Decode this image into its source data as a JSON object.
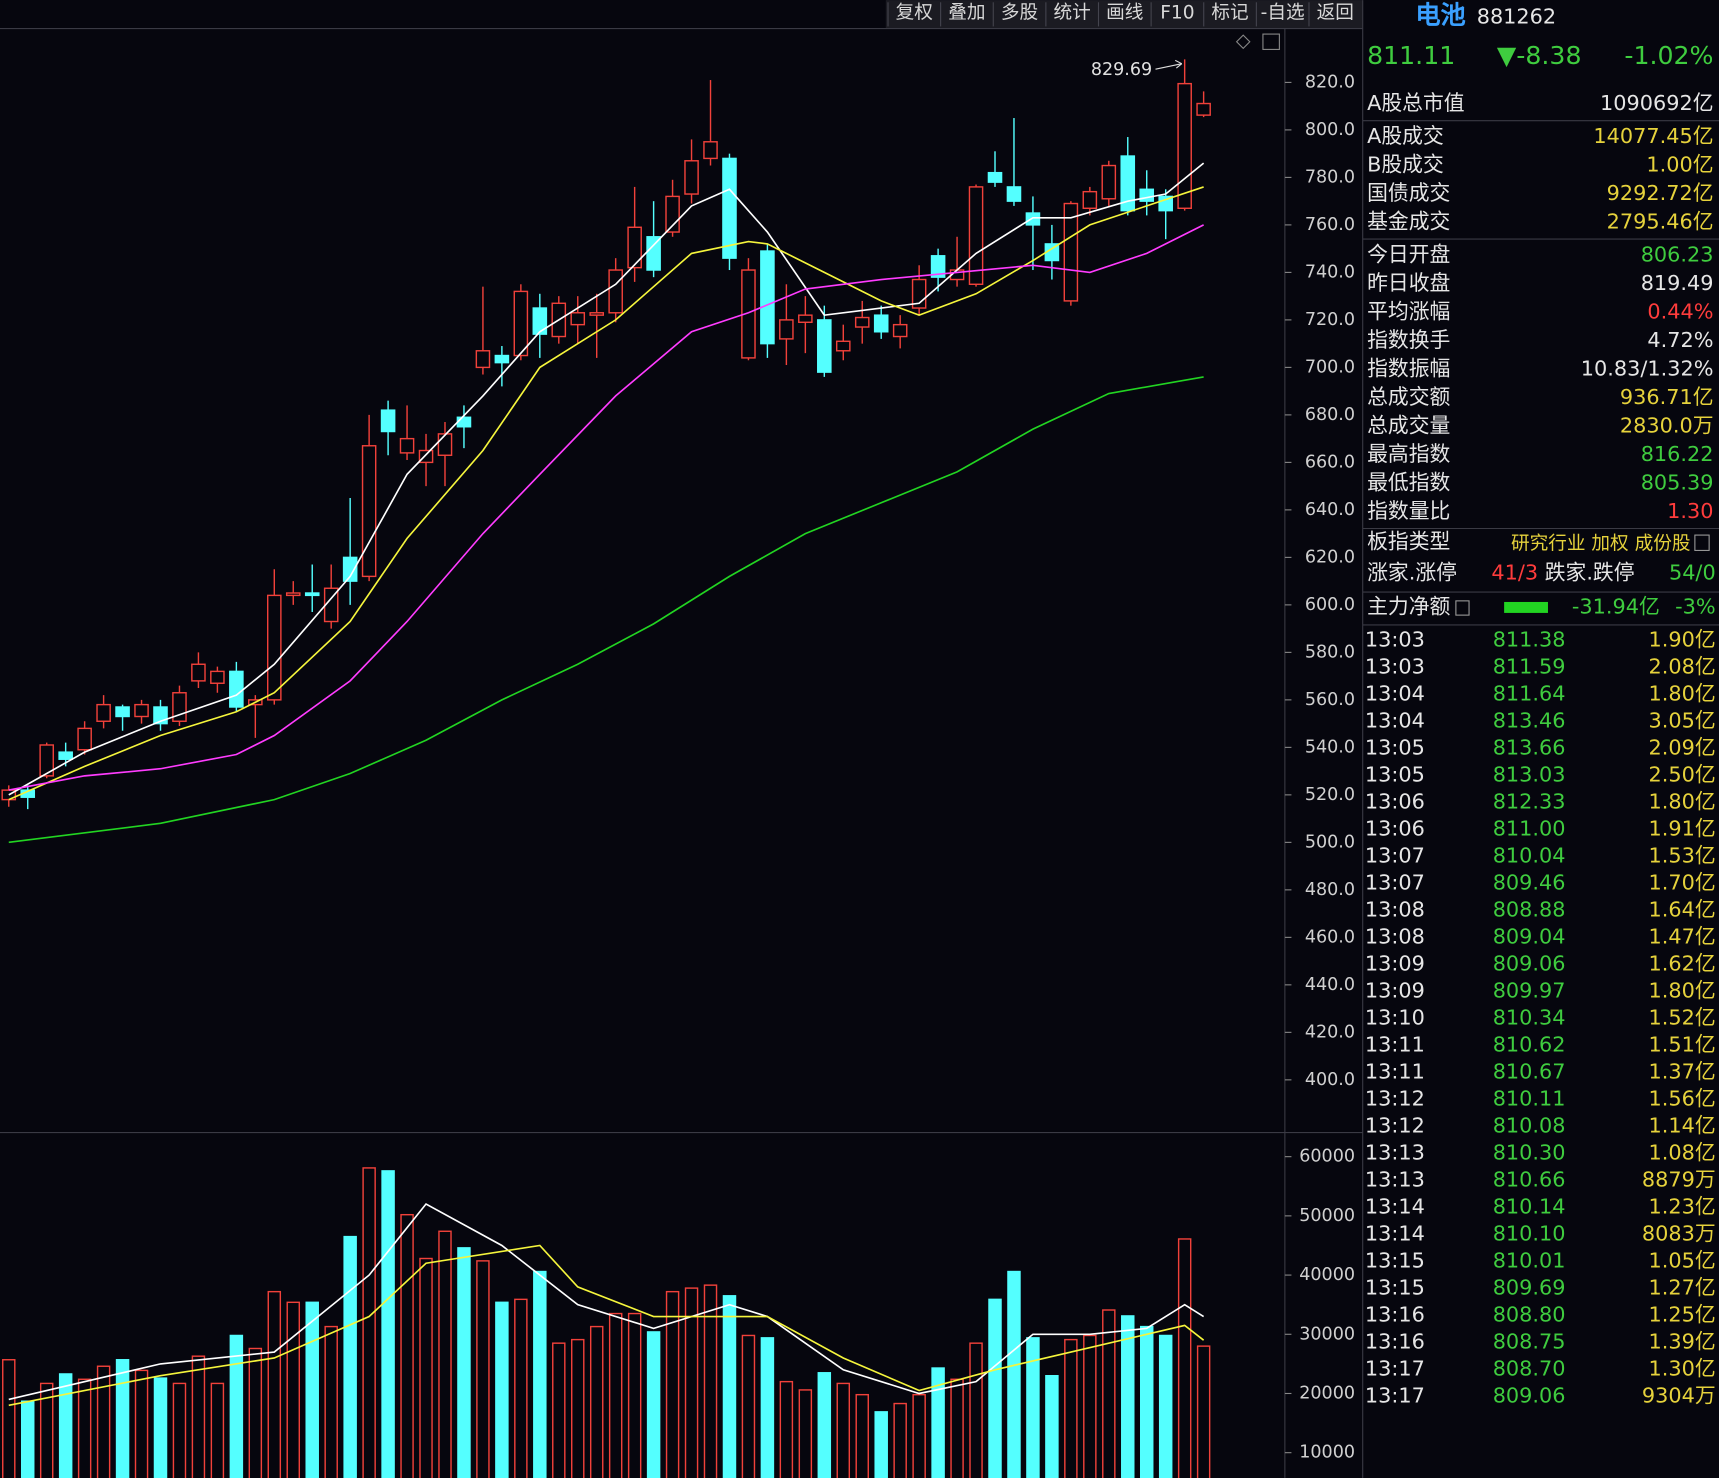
{
  "toolbar": [
    "复权",
    "叠加",
    "多股",
    "统计",
    "画线",
    "F10",
    "标记",
    "-自选",
    "返回"
  ],
  "chart_data": {
    "type": "candlestick",
    "high_label": "829.69",
    "up_color": "#f0413a",
    "down_color": "#54ffff",
    "ylim": [
      377.8,
      842.2
    ],
    "yticks": [
      {
        "value": 400,
        "label": "400.0"
      },
      {
        "value": 420,
        "label": "420.0"
      },
      {
        "value": 440,
        "label": "440.0"
      },
      {
        "value": 460,
        "label": "460.0"
      },
      {
        "value": 480,
        "label": "480.0"
      },
      {
        "value": 500,
        "label": "500.0"
      },
      {
        "value": 520,
        "label": "520.0"
      },
      {
        "value": 540,
        "label": "540.0"
      },
      {
        "value": 560,
        "label": "560.0"
      },
      {
        "value": 580,
        "label": "580.0"
      },
      {
        "value": 600,
        "label": "600.0"
      },
      {
        "value": 620,
        "label": "620.0"
      },
      {
        "value": 640,
        "label": "640.0"
      },
      {
        "value": 660,
        "label": "660.0"
      },
      {
        "value": 680,
        "label": "680.0"
      },
      {
        "value": 700,
        "label": "700.0"
      },
      {
        "value": 720,
        "label": "720.0"
      },
      {
        "value": 740,
        "label": "740.0"
      },
      {
        "value": 760,
        "label": "760.0"
      },
      {
        "value": 780,
        "label": "780.0"
      },
      {
        "value": 800,
        "label": "800.0"
      },
      {
        "value": 820,
        "label": "820.0"
      }
    ],
    "candles": {
      "open": [
        518,
        522,
        528,
        538,
        539,
        551,
        557,
        553,
        557,
        551,
        568,
        567,
        572,
        558,
        560,
        604,
        605,
        593,
        620,
        612,
        682,
        664,
        660,
        663,
        679,
        700,
        705,
        705,
        725,
        713,
        718,
        722,
        723,
        742,
        755,
        757,
        773,
        788,
        788,
        704,
        749,
        712,
        719,
        720,
        707,
        717,
        722,
        713,
        725,
        747,
        737,
        735,
        782,
        776,
        765,
        752,
        728,
        767,
        771,
        789,
        775,
        772,
        767,
        806.23
      ],
      "high": [
        524,
        524,
        542,
        542,
        551,
        562,
        558,
        560,
        560,
        566,
        580,
        574,
        576,
        562,
        615,
        610,
        617,
        617,
        645,
        680,
        686,
        684,
        672,
        677,
        684,
        734,
        709,
        735,
        731,
        730,
        730,
        731,
        746,
        776,
        770,
        779,
        796,
        821,
        790,
        746,
        752,
        735,
        730,
        726,
        718,
        728,
        726,
        722,
        743,
        750,
        755,
        777,
        791,
        805,
        772,
        760,
        770,
        776,
        787,
        797,
        783,
        775,
        829.69,
        816.22
      ],
      "low": [
        515,
        514,
        527,
        532,
        537,
        548,
        547,
        550,
        547,
        549,
        565,
        563,
        555,
        544,
        558,
        600,
        597,
        590,
        600,
        610,
        663,
        661,
        650,
        650,
        666,
        697,
        692,
        703,
        704,
        710,
        710,
        704,
        719,
        736,
        738,
        755,
        769,
        785,
        741,
        703,
        704,
        701,
        706,
        696,
        703,
        710,
        712,
        708,
        722,
        732,
        734,
        734,
        776,
        768,
        741,
        737,
        726,
        764,
        768,
        764,
        764,
        754,
        766,
        805.39
      ],
      "close": [
        522,
        519,
        541,
        535,
        548,
        558,
        553,
        558,
        550,
        563,
        575,
        572,
        557,
        560,
        604,
        605,
        604,
        607,
        610,
        667,
        673,
        670,
        665,
        672,
        675,
        707,
        702,
        732,
        714,
        727,
        723,
        723,
        741,
        759,
        741,
        772,
        787,
        795,
        746,
        741,
        710,
        720,
        722,
        698,
        711,
        721,
        715,
        718,
        737,
        738,
        741,
        776,
        778,
        770,
        760,
        745,
        769,
        774,
        785,
        766,
        770,
        766,
        819.49,
        811.11
      ]
    },
    "ma_lines": [
      {
        "color": "#ffffff",
        "x": [
          0,
          4,
          8,
          12,
          14,
          18,
          21,
          25,
          28,
          32,
          36,
          38,
          40,
          43,
          46,
          48,
          51,
          54,
          56,
          59,
          61,
          63
        ],
        "values": [
          520,
          538,
          551,
          562,
          575,
          612,
          655,
          688,
          715,
          735,
          768,
          775,
          757,
          722,
          725,
          727,
          748,
          763,
          763,
          770,
          773,
          786
        ]
      },
      {
        "color": "#f5f53c",
        "x": [
          0,
          4,
          8,
          12,
          14,
          18,
          21,
          25,
          28,
          32,
          36,
          39,
          40,
          43,
          46,
          48,
          51,
          54,
          57,
          60,
          63
        ],
        "values": [
          518,
          532,
          545,
          555,
          563,
          593,
          628,
          665,
          700,
          720,
          748,
          753,
          752,
          740,
          728,
          722,
          731,
          745,
          760,
          768,
          776
        ]
      },
      {
        "color": "#ff3cff",
        "x": [
          0,
          4,
          8,
          12,
          14,
          18,
          21,
          25,
          28,
          32,
          36,
          39,
          42,
          46,
          50,
          54,
          57,
          60,
          63
        ],
        "values": [
          522,
          528,
          531,
          537,
          545,
          568,
          593,
          630,
          655,
          688,
          715,
          723,
          733,
          737,
          740,
          743,
          740,
          748,
          760
        ]
      },
      {
        "color": "#22d422",
        "x": [
          0,
          8,
          14,
          18,
          22,
          26,
          30,
          34,
          38,
          42,
          46,
          50,
          54,
          58,
          63
        ],
        "values": [
          500,
          508,
          518,
          529,
          543,
          560,
          575,
          592,
          612,
          630,
          643,
          656,
          674,
          689,
          696
        ]
      }
    ],
    "volume": {
      "ylim": [
        5740,
        63700
      ],
      "yticks": [
        10000,
        20000,
        30000,
        40000,
        50000,
        60000
      ],
      "values": [
        25700,
        18700,
        21700,
        23300,
        22400,
        24600,
        25700,
        23900,
        22600,
        21700,
        26300,
        21700,
        29800,
        27600,
        37200,
        35400,
        35400,
        31300,
        46500,
        58100,
        57600,
        50200,
        42800,
        47400,
        44600,
        42400,
        35400,
        35900,
        40600,
        28500,
        29100,
        31300,
        33500,
        33500,
        30400,
        37200,
        37800,
        38300,
        36500,
        29800,
        29400,
        22000,
        20600,
        23500,
        21700,
        19800,
        16900,
        18300,
        19800,
        24300,
        22400,
        28500,
        35900,
        40600,
        29400,
        23000,
        29100,
        29800,
        34100,
        33100,
        31300,
        29800,
        46100,
        28000
      ],
      "ma_lines": [
        {
          "color": "#ffffff",
          "x": [
            0,
            8,
            14,
            19,
            22,
            26,
            30,
            34,
            38,
            40,
            44,
            48,
            51,
            54,
            57,
            60,
            62,
            63
          ],
          "values": [
            19000,
            25000,
            27000,
            40000,
            52000,
            45000,
            35000,
            31000,
            35000,
            33000,
            24000,
            20000,
            22000,
            30000,
            30000,
            31000,
            35000,
            33000
          ]
        },
        {
          "color": "#f5f53c",
          "x": [
            0,
            8,
            14,
            19,
            22,
            28,
            30,
            34,
            40,
            44,
            48,
            52,
            56,
            60,
            62,
            63
          ],
          "values": [
            18000,
            23000,
            26000,
            33000,
            42000,
            45000,
            38000,
            33000,
            33000,
            26000,
            20500,
            24000,
            27000,
            30000,
            31500,
            29000
          ]
        }
      ]
    }
  },
  "quote": {
    "name": "电池",
    "code": "881262",
    "price": "811.11",
    "change": "▼-8.38",
    "change_pct": "-1.02%"
  },
  "stats": [
    {
      "label": "A股总市值",
      "value": "1090692亿",
      "color": "#e6e6e6"
    },
    {
      "label": "A股成交",
      "value": "14077.45亿",
      "color": "#e6d23c"
    },
    {
      "label": "B股成交",
      "value": "1.00亿",
      "color": "#e6d23c"
    },
    {
      "label": "国债成交",
      "value": "9292.72亿",
      "color": "#e6d23c"
    },
    {
      "label": "基金成交",
      "value": "2795.46亿",
      "color": "#e6d23c"
    },
    {
      "label": "今日开盘",
      "value": "806.23",
      "color": "#3fcc3f"
    },
    {
      "label": "昨日收盘",
      "value": "819.49",
      "color": "#e6e6e6"
    },
    {
      "label": "平均涨幅",
      "value": "0.44%",
      "color": "#ff3c3c"
    },
    {
      "label": "指数换手",
      "value": "4.72%",
      "color": "#e6e6e6"
    },
    {
      "label": "指数振幅",
      "value": "10.83/1.32%",
      "color": "#e6e6e6"
    },
    {
      "label": "总成交额",
      "value": "936.71亿",
      "color": "#e6d23c"
    },
    {
      "label": "总成交量",
      "value": "2830.0万",
      "color": "#e6d23c"
    },
    {
      "label": "最高指数",
      "value": "816.22",
      "color": "#3fcc3f"
    },
    {
      "label": "最低指数",
      "value": "805.39",
      "color": "#3fcc3f"
    },
    {
      "label": "指数量比",
      "value": "1.30",
      "color": "#ff3c3c"
    }
  ],
  "index_type": {
    "label": "板指类型",
    "value": "研究行业 加权 成份股"
  },
  "breadth": {
    "up_label": "涨家.涨停",
    "up": "41/3",
    "down_label": "跌家.跌停",
    "down": "54/0"
  },
  "fund_flow": {
    "label": "主力净额",
    "amount": "-31.94亿",
    "pct": "-3%"
  },
  "ticks": [
    {
      "time": "13:03",
      "price": "811.38",
      "amount": "1.90亿"
    },
    {
      "time": "13:03",
      "price": "811.59",
      "amount": "2.08亿"
    },
    {
      "time": "13:04",
      "price": "811.64",
      "amount": "1.80亿"
    },
    {
      "time": "13:04",
      "price": "813.46",
      "amount": "3.05亿"
    },
    {
      "time": "13:05",
      "price": "813.66",
      "amount": "2.09亿"
    },
    {
      "time": "13:05",
      "price": "813.03",
      "amount": "2.50亿"
    },
    {
      "time": "13:06",
      "price": "812.33",
      "amount": "1.80亿"
    },
    {
      "time": "13:06",
      "price": "811.00",
      "amount": "1.91亿"
    },
    {
      "time": "13:07",
      "price": "810.04",
      "amount": "1.53亿"
    },
    {
      "time": "13:07",
      "price": "809.46",
      "amount": "1.70亿"
    },
    {
      "time": "13:08",
      "price": "808.88",
      "amount": "1.64亿"
    },
    {
      "time": "13:08",
      "price": "809.04",
      "amount": "1.47亿"
    },
    {
      "time": "13:09",
      "price": "809.06",
      "amount": "1.62亿"
    },
    {
      "time": "13:09",
      "price": "809.97",
      "amount": "1.80亿"
    },
    {
      "time": "13:10",
      "price": "810.34",
      "amount": "1.52亿"
    },
    {
      "time": "13:11",
      "price": "810.62",
      "amount": "1.51亿"
    },
    {
      "time": "13:11",
      "price": "810.67",
      "amount": "1.37亿"
    },
    {
      "time": "13:12",
      "price": "810.11",
      "amount": "1.56亿"
    },
    {
      "time": "13:12",
      "price": "810.08",
      "amount": "1.14亿"
    },
    {
      "time": "13:13",
      "price": "810.30",
      "amount": "1.08亿"
    },
    {
      "time": "13:13",
      "price": "810.66",
      "amount": "8879万"
    },
    {
      "time": "13:14",
      "price": "810.14",
      "amount": "1.23亿"
    },
    {
      "time": "13:14",
      "price": "810.10",
      "amount": "8083万"
    },
    {
      "time": "13:15",
      "price": "810.01",
      "amount": "1.05亿"
    },
    {
      "time": "13:15",
      "price": "809.69",
      "amount": "1.27亿"
    },
    {
      "time": "13:16",
      "price": "808.80",
      "amount": "1.25亿"
    },
    {
      "time": "13:16",
      "price": "808.75",
      "amount": "1.39亿"
    },
    {
      "time": "13:17",
      "price": "808.70",
      "amount": "1.30亿"
    },
    {
      "time": "13:17",
      "price": "809.06",
      "amount": "9304万"
    }
  ]
}
